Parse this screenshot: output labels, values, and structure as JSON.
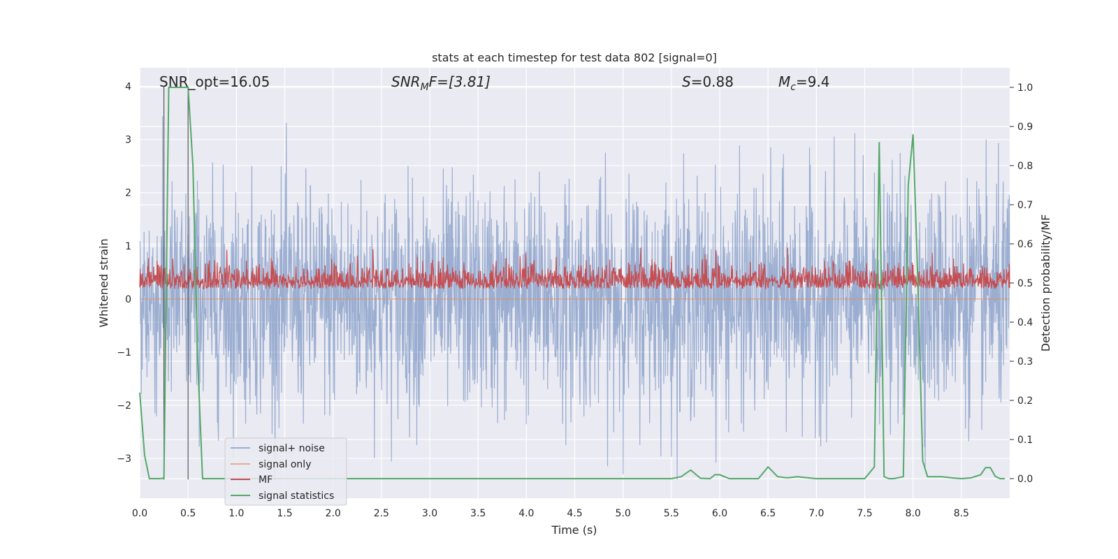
{
  "chart_data": {
    "type": "line",
    "title": "stats at each timestep for test data 802 [signal=0]",
    "xlabel": "Time (s)",
    "ylabel_left": "Whitened strain",
    "ylabel_right": "Detection probability/MF",
    "xlim": [
      0,
      9.0
    ],
    "ylim_left": [
      -3.75,
      4.35
    ],
    "ylim_right": [
      -0.05,
      1.05
    ],
    "xticks": [
      0.0,
      0.5,
      1.0,
      1.5,
      2.0,
      2.5,
      3.0,
      3.5,
      4.0,
      4.5,
      5.0,
      5.5,
      6.0,
      6.5,
      7.0,
      7.5,
      8.0,
      8.5
    ],
    "xtick_labels": [
      "0.0",
      "0.5",
      "1.0",
      "1.5",
      "2.0",
      "2.5",
      "3.0",
      "3.5",
      "4.0",
      "4.5",
      "5.0",
      "5.5",
      "6.0",
      "6.5",
      "7.0",
      "7.5",
      "8.0",
      "8.5"
    ],
    "yticks_left": [
      -3,
      -2,
      -1,
      0,
      1,
      2,
      3,
      4
    ],
    "ytick_labels_left": [
      "−3",
      "−2",
      "−1",
      "0",
      "1",
      "2",
      "3",
      "4"
    ],
    "yticks_right": [
      0.0,
      0.1,
      0.2,
      0.3,
      0.4,
      0.5,
      0.6,
      0.7,
      0.8,
      0.9,
      1.0
    ],
    "ytick_labels_right": [
      "0.0",
      "0.1",
      "0.2",
      "0.3",
      "0.4",
      "0.5",
      "0.6",
      "0.7",
      "0.8",
      "0.9",
      "1.0"
    ],
    "annotations": {
      "snr_opt": "SNR_opt=16.05",
      "snr_mf_main": "SNR",
      "snr_mf_sub": "M",
      "snr_mf_rest": "F=[3.81]",
      "s_main": "S",
      "s_rest": "=0.88",
      "mc_main": "M",
      "mc_sub": "c",
      "mc_rest": "=9.4"
    },
    "vlines": [
      0.25,
      0.5
    ],
    "series": [
      {
        "name": "signal+ noise",
        "color": "#4c72b0",
        "axis": "left",
        "amplitude_approx": 2.0,
        "range": [
          -3.4,
          4.0
        ]
      },
      {
        "name": "signal only",
        "color": "#dd8452",
        "axis": "left",
        "values_constant": 0.0
      },
      {
        "name": "MF",
        "color": "#c44e52",
        "axis": "right",
        "baseline": 0.5,
        "range": [
          0.46,
          0.59
        ]
      },
      {
        "name": "signal statistics",
        "color": "#55a868",
        "axis": "right",
        "x": [
          0.0,
          0.05,
          0.1,
          0.15,
          0.2,
          0.25,
          0.3,
          0.35,
          0.4,
          0.45,
          0.5,
          0.55,
          0.6,
          0.65,
          0.7,
          1.0,
          2.0,
          3.0,
          4.0,
          5.0,
          5.5,
          5.6,
          5.7,
          5.8,
          5.9,
          5.95,
          6.0,
          6.1,
          6.2,
          6.4,
          6.5,
          6.6,
          6.7,
          6.8,
          7.0,
          7.5,
          7.6,
          7.65,
          7.7,
          7.75,
          7.8,
          7.9,
          7.95,
          8.0,
          8.05,
          8.1,
          8.15,
          8.2,
          8.3,
          8.4,
          8.5,
          8.6,
          8.7,
          8.75,
          8.8,
          8.85,
          8.9,
          8.95
        ],
        "values": [
          0.22,
          0.06,
          0.0,
          0.0,
          0.0,
          0.001,
          1.0,
          1.0,
          1.0,
          1.0,
          1.0,
          0.8,
          0.3,
          0.0,
          0.0,
          0.0,
          0.0,
          0.0,
          0.0,
          0.0,
          0.0,
          0.005,
          0.022,
          0.001,
          0.0,
          0.01,
          0.01,
          0.0,
          0.0,
          0.0,
          0.03,
          0.005,
          0.002,
          0.005,
          0.0,
          0.0,
          0.03,
          0.86,
          0.005,
          0.0,
          0.0,
          0.005,
          0.75,
          0.88,
          0.5,
          0.045,
          0.005,
          0.005,
          0.005,
          0.002,
          0.0,
          0.002,
          0.01,
          0.028,
          0.028,
          0.006,
          0.0,
          0.0
        ]
      }
    ],
    "legend": {
      "position": "lower-left",
      "entries": [
        "signal+ noise",
        "signal only",
        "MF",
        "signal statistics"
      ]
    }
  }
}
